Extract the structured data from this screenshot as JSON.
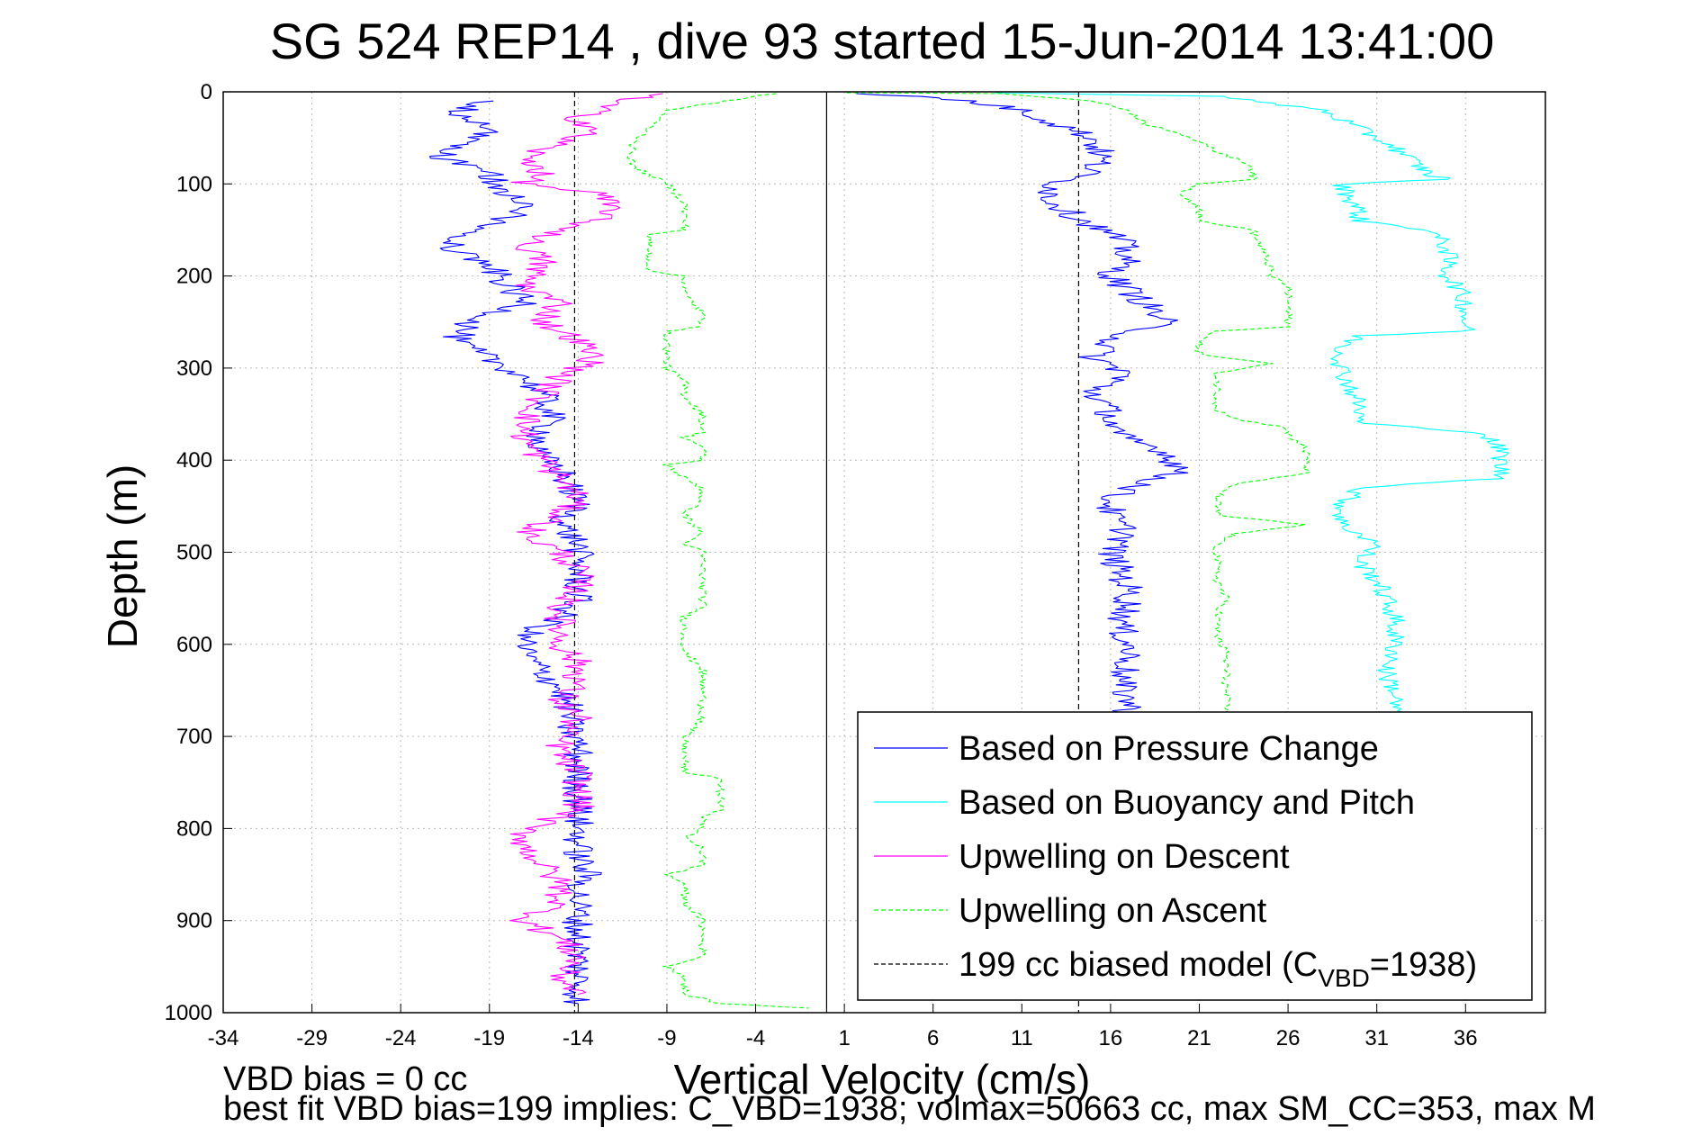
{
  "chart_data": {
    "type": "line",
    "title": "SG 524   REP14  , dive 93 started 15-Jun-2014 13:41:00",
    "xlabel": "Vertical Velocity (cm/s)",
    "ylabel": "Depth (m)",
    "xlim": [
      -34,
      40.5
    ],
    "ylim": [
      1000,
      0
    ],
    "y_reversed": true,
    "xticks": [
      -34,
      -29,
      -24,
      -19,
      -14,
      -9,
      -4,
      1,
      6,
      11,
      16,
      21,
      26,
      31,
      36
    ],
    "yticks": [
      0,
      100,
      200,
      300,
      400,
      500,
      600,
      700,
      800,
      900,
      1000
    ],
    "grid": true,
    "legend_position": "bottom-right",
    "legend": [
      {
        "label": "Based on Pressure Change",
        "color": "#0000ff",
        "style": "solid"
      },
      {
        "label": "Based on Buoyancy and Pitch",
        "color": "#00ffff",
        "style": "solid"
      },
      {
        "label": "Upwelling on Descent",
        "color": "#ff00ff",
        "style": "solid"
      },
      {
        "label": "Upwelling on Ascent",
        "color": "#00ff00",
        "style": "dashed"
      },
      {
        "label": "199 cc biased model (C",
        "sub": "VBD",
        "suffix": "=1938)",
        "color": "#000000",
        "style": "dashed"
      }
    ],
    "vertical_reference_lines": [
      {
        "x": -14.2,
        "style": "dashed",
        "color": "#000000"
      },
      {
        "x": 0,
        "style": "solid",
        "color": "#000000"
      },
      {
        "x": 14.2,
        "style": "dashed",
        "color": "#000000"
      }
    ],
    "series": [
      {
        "color": "#0000ff",
        "noise": 0.9,
        "points": [
          [
            -19,
            10
          ],
          [
            -21,
            25
          ],
          [
            -19,
            40
          ],
          [
            -20,
            55
          ],
          [
            -22,
            70
          ],
          [
            -19,
            90
          ],
          [
            -18,
            110
          ],
          [
            -17,
            130
          ],
          [
            -20,
            150
          ],
          [
            -21,
            170
          ],
          [
            -19,
            190
          ],
          [
            -18,
            210
          ],
          [
            -17,
            230
          ],
          [
            -20,
            250
          ],
          [
            -21,
            270
          ],
          [
            -19,
            290
          ],
          [
            -17,
            310
          ],
          [
            -16,
            330
          ],
          [
            -15.5,
            350
          ],
          [
            -16,
            370
          ],
          [
            -16.5,
            390
          ],
          [
            -15,
            410
          ],
          [
            -14.5,
            430
          ],
          [
            -14,
            450
          ],
          [
            -15,
            470
          ],
          [
            -14,
            490
          ],
          [
            -14,
            510
          ],
          [
            -14,
            530
          ],
          [
            -14,
            550
          ],
          [
            -15,
            570
          ],
          [
            -17,
            590
          ],
          [
            -17,
            610
          ],
          [
            -16,
            630
          ],
          [
            -15,
            650
          ],
          [
            -14.5,
            670
          ],
          [
            -14.5,
            690
          ],
          [
            -14,
            710
          ],
          [
            -14,
            730
          ],
          [
            -14,
            750
          ],
          [
            -14,
            770
          ],
          [
            -14,
            790
          ],
          [
            -14,
            810
          ],
          [
            -14,
            830
          ],
          [
            -13.5,
            850
          ],
          [
            -14,
            870
          ],
          [
            -14,
            890
          ],
          [
            -14,
            910
          ],
          [
            -14,
            930
          ],
          [
            -14,
            950
          ],
          [
            -14,
            970
          ],
          [
            -14,
            990
          ]
        ]
      },
      {
        "color": "#0000ff",
        "noise": 0.9,
        "points": [
          [
            1,
            2
          ],
          [
            5,
            5
          ],
          [
            8,
            10
          ],
          [
            11,
            20
          ],
          [
            13,
            35
          ],
          [
            15,
            50
          ],
          [
            15.5,
            70
          ],
          [
            15,
            85
          ],
          [
            13,
            100
          ],
          [
            12.5,
            115
          ],
          [
            14,
            135
          ],
          [
            16.5,
            160
          ],
          [
            17,
            180
          ],
          [
            16,
            200
          ],
          [
            18,
            230
          ],
          [
            19,
            250
          ],
          [
            16,
            270
          ],
          [
            15,
            290
          ],
          [
            17,
            305
          ],
          [
            15,
            325
          ],
          [
            16,
            350
          ],
          [
            16,
            370
          ],
          [
            19,
            390
          ],
          [
            20,
            410
          ],
          [
            18,
            425
          ],
          [
            16,
            440
          ],
          [
            16,
            460
          ],
          [
            17,
            480
          ],
          [
            16,
            500
          ],
          [
            16.5,
            520
          ],
          [
            17,
            540
          ],
          [
            17,
            560
          ],
          [
            16.5,
            580
          ],
          [
            17,
            600
          ],
          [
            17,
            620
          ],
          [
            16.5,
            640
          ],
          [
            17,
            660
          ],
          [
            17,
            680
          ]
        ]
      },
      {
        "color": "#00ffff",
        "noise": 0.6,
        "points": [
          [
            10,
            1
          ],
          [
            22,
            5
          ],
          [
            28,
            20
          ],
          [
            30,
            40
          ],
          [
            31,
            50
          ],
          [
            32,
            60
          ],
          [
            33,
            75
          ],
          [
            34,
            90
          ],
          [
            35,
            95
          ],
          [
            29,
            100
          ],
          [
            29.5,
            115
          ],
          [
            30,
            130
          ],
          [
            30,
            140
          ],
          [
            34,
            150
          ],
          [
            35,
            170
          ],
          [
            35,
            190
          ],
          [
            35,
            200
          ],
          [
            35.5,
            210
          ],
          [
            36,
            230
          ],
          [
            36,
            250
          ],
          [
            36,
            260
          ],
          [
            30,
            265
          ],
          [
            29,
            280
          ],
          [
            29,
            300
          ],
          [
            29.5,
            320
          ],
          [
            30,
            340
          ],
          [
            30,
            360
          ],
          [
            37,
            370
          ],
          [
            38,
            390
          ],
          [
            38,
            410
          ],
          [
            38,
            420
          ],
          [
            30,
            430
          ],
          [
            29,
            450
          ],
          [
            29,
            470
          ],
          [
            31,
            490
          ],
          [
            30,
            510
          ],
          [
            31,
            530
          ],
          [
            31.5,
            550
          ],
          [
            32,
            570
          ],
          [
            32,
            590
          ],
          [
            32,
            610
          ],
          [
            31.5,
            630
          ],
          [
            32,
            650
          ],
          [
            32,
            670
          ],
          [
            32,
            690
          ]
        ]
      },
      {
        "color": "#ff00ff",
        "noise": 0.9,
        "points": [
          [
            -9,
            2
          ],
          [
            -12,
            10
          ],
          [
            -13,
            20
          ],
          [
            -14,
            30
          ],
          [
            -13,
            40
          ],
          [
            -15,
            55
          ],
          [
            -17,
            70
          ],
          [
            -16,
            85
          ],
          [
            -17,
            100
          ],
          [
            -13,
            110
          ],
          [
            -12,
            130
          ],
          [
            -14,
            145
          ],
          [
            -17,
            165
          ],
          [
            -16,
            185
          ],
          [
            -17,
            210
          ],
          [
            -15,
            230
          ],
          [
            -16,
            250
          ],
          [
            -14,
            270
          ],
          [
            -13,
            290
          ],
          [
            -15,
            310
          ],
          [
            -16,
            330
          ],
          [
            -17,
            360
          ],
          [
            -17,
            380
          ],
          [
            -16,
            400
          ],
          [
            -15,
            420
          ],
          [
            -14,
            440
          ],
          [
            -15,
            460
          ],
          [
            -17,
            480
          ],
          [
            -15,
            500
          ],
          [
            -14,
            520
          ],
          [
            -14,
            540
          ],
          [
            -15,
            560
          ],
          [
            -15,
            580
          ],
          [
            -15,
            600
          ],
          [
            -14,
            620
          ],
          [
            -14,
            640
          ],
          [
            -15,
            660
          ],
          [
            -14,
            680
          ],
          [
            -15,
            700
          ],
          [
            -15,
            720
          ],
          [
            -14,
            740
          ],
          [
            -14,
            760
          ],
          [
            -14,
            780
          ],
          [
            -17,
            800
          ],
          [
            -17,
            820
          ],
          [
            -16,
            840
          ],
          [
            -15,
            860
          ],
          [
            -15,
            880
          ],
          [
            -17,
            900
          ],
          [
            -15,
            920
          ],
          [
            -14,
            940
          ],
          [
            -15,
            960
          ],
          [
            -14,
            980
          ]
        ]
      },
      {
        "color": "#00ff00",
        "dashed": true,
        "noise": 0.25,
        "points": [
          [
            -3,
            2
          ],
          [
            -9,
            20
          ],
          [
            -10,
            40
          ],
          [
            -11,
            60
          ],
          [
            -11,
            80
          ],
          [
            -9,
            100
          ],
          [
            -8,
            120
          ],
          [
            -8,
            140
          ],
          [
            -8,
            150
          ],
          [
            -10,
            155
          ],
          [
            -10,
            175
          ],
          [
            -10,
            195
          ],
          [
            -8,
            200
          ],
          [
            -8,
            220
          ],
          [
            -7,
            240
          ],
          [
            -7,
            255
          ],
          [
            -9,
            260
          ],
          [
            -9,
            280
          ],
          [
            -9,
            300
          ],
          [
            -8,
            315
          ],
          [
            -8,
            330
          ],
          [
            -7,
            350
          ],
          [
            -7,
            370
          ],
          [
            -8,
            375
          ],
          [
            -7,
            385
          ],
          [
            -7,
            400
          ],
          [
            -9,
            405
          ],
          [
            -8,
            420
          ],
          [
            -7,
            430
          ],
          [
            -7,
            440
          ],
          [
            -8,
            460
          ],
          [
            -7,
            480
          ],
          [
            -8,
            490
          ],
          [
            -7,
            500
          ],
          [
            -7,
            520
          ],
          [
            -7,
            540
          ],
          [
            -7,
            560
          ],
          [
            -8,
            570
          ],
          [
            -8,
            590
          ],
          [
            -8,
            610
          ],
          [
            -7,
            625
          ],
          [
            -7,
            640
          ],
          [
            -7,
            660
          ],
          [
            -7,
            680
          ],
          [
            -8,
            700
          ],
          [
            -8,
            720
          ],
          [
            -8,
            740
          ],
          [
            -6,
            745
          ],
          [
            -6,
            760
          ],
          [
            -6,
            780
          ],
          [
            -7,
            790
          ],
          [
            -7,
            800
          ],
          [
            -8,
            810
          ],
          [
            -7,
            820
          ],
          [
            -7,
            840
          ],
          [
            -9,
            850
          ],
          [
            -8,
            860
          ],
          [
            -8,
            880
          ],
          [
            -7,
            900
          ],
          [
            -7,
            920
          ],
          [
            -7,
            940
          ],
          [
            -9,
            950
          ],
          [
            -8,
            960
          ],
          [
            -8,
            980
          ],
          [
            -6,
            990
          ],
          [
            -1,
            995
          ]
        ]
      },
      {
        "color": "#00ff00",
        "dashed": true,
        "noise": 0.25,
        "points": [
          [
            1,
            1
          ],
          [
            10,
            2
          ],
          [
            15,
            10
          ],
          [
            17,
            20
          ],
          [
            18,
            35
          ],
          [
            20,
            45
          ],
          [
            21,
            55
          ],
          [
            22,
            65
          ],
          [
            24,
            80
          ],
          [
            24,
            95
          ],
          [
            21,
            100
          ],
          [
            20,
            110
          ],
          [
            21,
            125
          ],
          [
            21,
            140
          ],
          [
            24,
            150
          ],
          [
            24.5,
            170
          ],
          [
            25,
            190
          ],
          [
            25,
            200
          ],
          [
            26,
            210
          ],
          [
            26,
            230
          ],
          [
            26,
            250
          ],
          [
            26,
            255
          ],
          [
            22,
            260
          ],
          [
            21,
            270
          ],
          [
            21,
            285
          ],
          [
            25,
            295
          ],
          [
            22,
            305
          ],
          [
            22,
            325
          ],
          [
            22,
            345
          ],
          [
            23,
            355
          ],
          [
            26,
            365
          ],
          [
            26,
            375
          ],
          [
            27,
            385
          ],
          [
            27,
            400
          ],
          [
            27,
            415
          ],
          [
            23,
            425
          ],
          [
            22,
            440
          ],
          [
            22,
            460
          ],
          [
            27,
            470
          ],
          [
            23,
            480
          ],
          [
            22,
            490
          ],
          [
            22,
            510
          ],
          [
            22,
            530
          ],
          [
            22.5,
            550
          ],
          [
            22,
            570
          ],
          [
            22,
            590
          ],
          [
            22.5,
            610
          ],
          [
            22.5,
            630
          ],
          [
            22.5,
            650
          ],
          [
            22.5,
            670
          ],
          [
            22.5,
            690
          ]
        ]
      }
    ]
  },
  "footnotes": {
    "vbd_bias": "VBD bias = 0 cc",
    "best_fit": "best fit VBD bias=199 implies: C_VBD=1938; volmax=50663 cc, max SM_CC=353, max M"
  }
}
